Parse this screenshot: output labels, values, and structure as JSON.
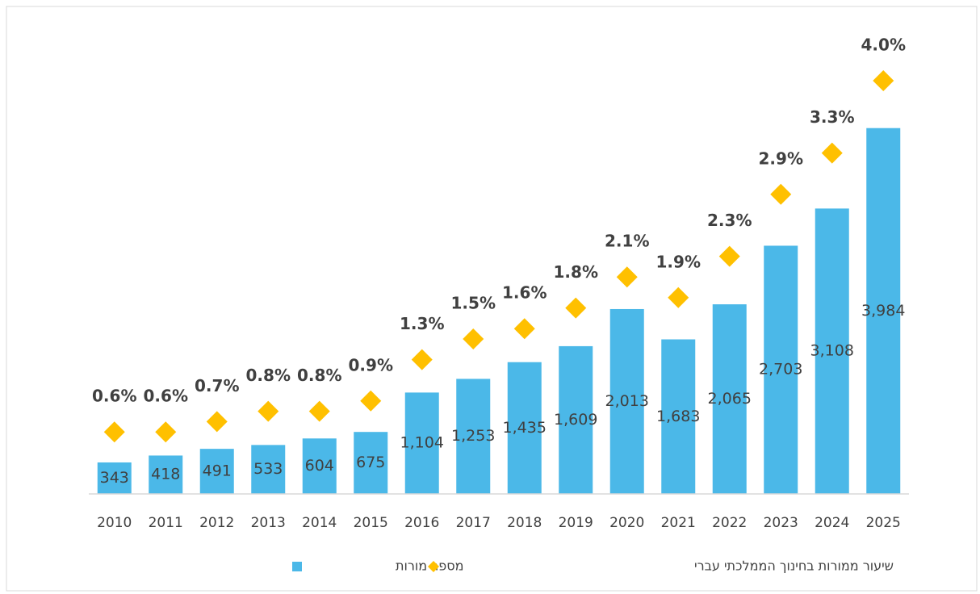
{
  "chart_data": {
    "type": "bar",
    "categories": [
      "2010",
      "2011",
      "2012",
      "2013",
      "2014",
      "2015",
      "2016",
      "2017",
      "2018",
      "2019",
      "2020",
      "2021",
      "2022",
      "2023",
      "2024",
      "2025"
    ],
    "series": [
      {
        "name": "מספר מורות",
        "type": "bar",
        "color": "#4bb8e8",
        "values": [
          343,
          418,
          491,
          533,
          604,
          675,
          1104,
          1253,
          1435,
          1609,
          2013,
          1683,
          2065,
          2703,
          3108,
          3984
        ],
        "value_labels": [
          "343",
          "418",
          "491",
          "533",
          "604",
          "675",
          "1,104",
          "1,253",
          "1,435",
          "1,609",
          "2,013",
          "1,683",
          "2,065",
          "2,703",
          "3,108",
          "3,984"
        ]
      },
      {
        "name": "שיעור ממורות בחינוך הממלכתי עברי",
        "type": "scatter",
        "axis": "y2",
        "color": "#ffc000",
        "values": [
          0.6,
          0.6,
          0.7,
          0.8,
          0.8,
          0.9,
          1.3,
          1.5,
          1.6,
          1.8,
          2.1,
          1.9,
          2.3,
          2.9,
          3.3,
          4.0
        ],
        "value_labels": [
          "0.6%",
          "0.6%",
          "0.7%",
          "0.8%",
          "0.8%",
          "0.9%",
          "1.3%",
          "1.5%",
          "1.6%",
          "1.8%",
          "2.1%",
          "1.9%",
          "2.3%",
          "2.9%",
          "3.3%",
          "4.0%"
        ]
      }
    ],
    "ylim": [
      0,
      4500
    ],
    "y2lim": [
      0,
      4
    ],
    "legend": "bottom"
  }
}
